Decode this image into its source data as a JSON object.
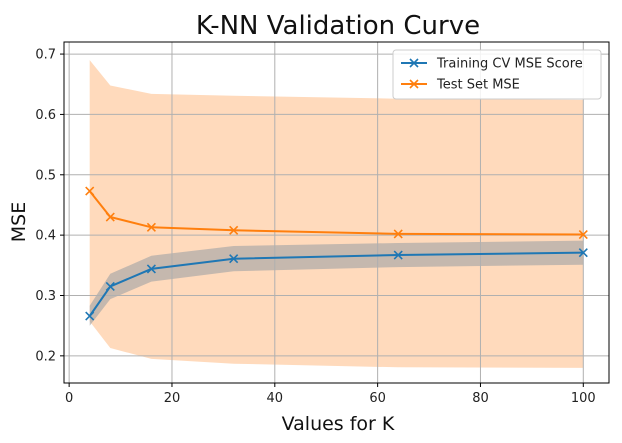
{
  "chart_data": {
    "type": "line",
    "title": "K-NN Validation Curve",
    "xlabel": "Values for K",
    "ylabel": "MSE",
    "xlim": [
      -1,
      105
    ],
    "ylim": [
      0.155,
      0.72
    ],
    "x_ticks": [
      0,
      20,
      40,
      60,
      80,
      100
    ],
    "y_ticks": [
      0.2,
      0.3,
      0.4,
      0.5,
      0.6,
      0.7
    ],
    "x_tick_labels": [
      "0",
      "20",
      "40",
      "60",
      "80",
      "100"
    ],
    "y_tick_labels": [
      "0.2",
      "0.3",
      "0.4",
      "0.5",
      "0.6",
      "0.7"
    ],
    "grid": true,
    "legend_position": "top-right",
    "x": [
      4,
      8,
      16,
      32,
      64,
      100
    ],
    "series": [
      {
        "name": "Training CV MSE Score",
        "color": "#1f77b4",
        "marker": "x",
        "values": [
          0.266,
          0.315,
          0.344,
          0.361,
          0.367,
          0.371
        ],
        "band_upper": [
          0.283,
          0.336,
          0.366,
          0.382,
          0.387,
          0.391
        ],
        "band_lower": [
          0.25,
          0.294,
          0.323,
          0.34,
          0.347,
          0.351
        ],
        "band_color": "#a6a6a6"
      },
      {
        "name": "Test Set MSE",
        "color": "#ff7f0e",
        "marker": "x",
        "values": [
          0.473,
          0.43,
          0.413,
          0.408,
          0.402,
          0.401
        ],
        "band_upper": [
          0.69,
          0.648,
          0.634,
          0.631,
          0.626,
          0.624
        ],
        "band_lower": [
          0.257,
          0.213,
          0.195,
          0.187,
          0.181,
          0.18
        ],
        "band_color": "#ffd4b0"
      }
    ]
  }
}
